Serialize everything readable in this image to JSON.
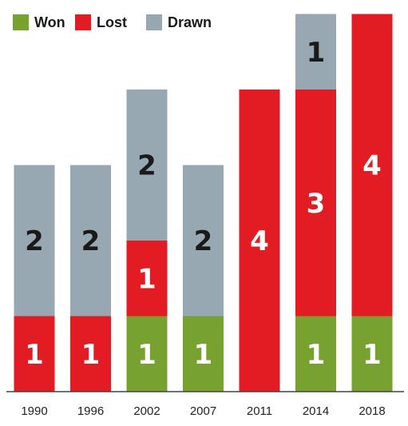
{
  "chart_data": {
    "type": "bar",
    "stacked": true,
    "categories": [
      "1990",
      "1996",
      "2002",
      "2007",
      "2011",
      "2014",
      "2018"
    ],
    "series": [
      {
        "name": "Won",
        "color": "#78a22f",
        "values": [
          0,
          0,
          1,
          1,
          0,
          1,
          1
        ]
      },
      {
        "name": "Lost",
        "color": "#e31b23",
        "values": [
          1,
          1,
          1,
          0,
          4,
          3,
          4
        ]
      },
      {
        "name": "Drawn",
        "color": "#97a8b2",
        "values": [
          2,
          2,
          2,
          2,
          0,
          1,
          0
        ]
      }
    ],
    "ylim": [
      0,
      5
    ],
    "grid": false,
    "legend_position": "top-left",
    "segment_label_colors": {
      "Won": "#ffffff",
      "Lost": "#ffffff",
      "Drawn": "#1a1a1a"
    }
  }
}
